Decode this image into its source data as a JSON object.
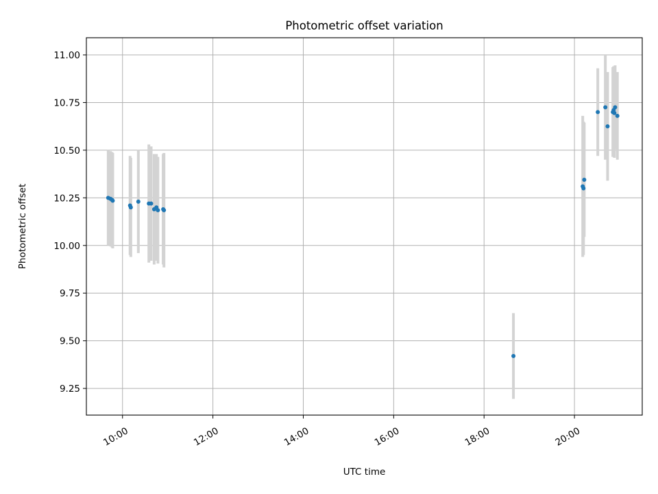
{
  "chart_data": {
    "type": "scatter",
    "title": "Photometric offset variation",
    "xlabel": "UTC time",
    "ylabel": "Photometric offset",
    "x_unit": "UTC hours",
    "xlim": [
      "09:12",
      "21:30"
    ],
    "ylim": [
      9.11,
      11.09
    ],
    "x_ticks": [
      {
        "value": "10:00",
        "label": "10:00"
      },
      {
        "value": "12:00",
        "label": "12:00"
      },
      {
        "value": "14:00",
        "label": "14:00"
      },
      {
        "value": "16:00",
        "label": "16:00"
      },
      {
        "value": "18:00",
        "label": "18:00"
      },
      {
        "value": "20:00",
        "label": "20:00"
      }
    ],
    "y_ticks": [
      {
        "value": 9.25,
        "label": "9.25"
      },
      {
        "value": 9.5,
        "label": "9.50"
      },
      {
        "value": 9.75,
        "label": "9.75"
      },
      {
        "value": 10.0,
        "label": "10.00"
      },
      {
        "value": 10.25,
        "label": "10.25"
      },
      {
        "value": 10.5,
        "label": "10.50"
      },
      {
        "value": 10.75,
        "label": "10.75"
      },
      {
        "value": 11.0,
        "label": "11.00"
      }
    ],
    "grid": true,
    "marker_color": "#1f77b4",
    "errorbar_color": "#d3d3d3",
    "points": [
      {
        "x": "09:41",
        "y": 10.25,
        "err": 0.25
      },
      {
        "x": "09:44",
        "y": 10.245,
        "err": 0.25
      },
      {
        "x": "09:46",
        "y": 10.24,
        "err": 0.25
      },
      {
        "x": "09:47",
        "y": 10.235,
        "err": 0.25
      },
      {
        "x": "10:10",
        "y": 10.21,
        "err": 0.26
      },
      {
        "x": "10:11",
        "y": 10.2,
        "err": 0.26
      },
      {
        "x": "10:21",
        "y": 10.23,
        "err": 0.27
      },
      {
        "x": "10:35",
        "y": 10.22,
        "err": 0.31
      },
      {
        "x": "10:38",
        "y": 10.22,
        "err": 0.3
      },
      {
        "x": "10:42",
        "y": 10.19,
        "err": 0.29
      },
      {
        "x": "10:45",
        "y": 10.2,
        "err": 0.28
      },
      {
        "x": "10:47",
        "y": 10.185,
        "err": 0.28
      },
      {
        "x": "10:54",
        "y": 10.19,
        "err": 0.29
      },
      {
        "x": "10:55",
        "y": 10.185,
        "err": 0.3
      },
      {
        "x": "18:39",
        "y": 9.42,
        "err": 0.225
      },
      {
        "x": "20:11",
        "y": 10.31,
        "err": 0.37
      },
      {
        "x": "20:12",
        "y": 10.3,
        "err": 0.35
      },
      {
        "x": "20:13",
        "y": 10.345,
        "err": 0.3
      },
      {
        "x": "20:31",
        "y": 10.7,
        "err": 0.23
      },
      {
        "x": "20:41",
        "y": 10.725,
        "err": 0.275
      },
      {
        "x": "20:44",
        "y": 10.625,
        "err": 0.285
      },
      {
        "x": "20:51",
        "y": 10.7,
        "err": 0.235
      },
      {
        "x": "20:52",
        "y": 10.71,
        "err": 0.23
      },
      {
        "x": "20:53",
        "y": 10.695,
        "err": 0.235
      },
      {
        "x": "20:54",
        "y": 10.725,
        "err": 0.22
      },
      {
        "x": "20:57",
        "y": 10.68,
        "err": 0.23
      }
    ]
  }
}
